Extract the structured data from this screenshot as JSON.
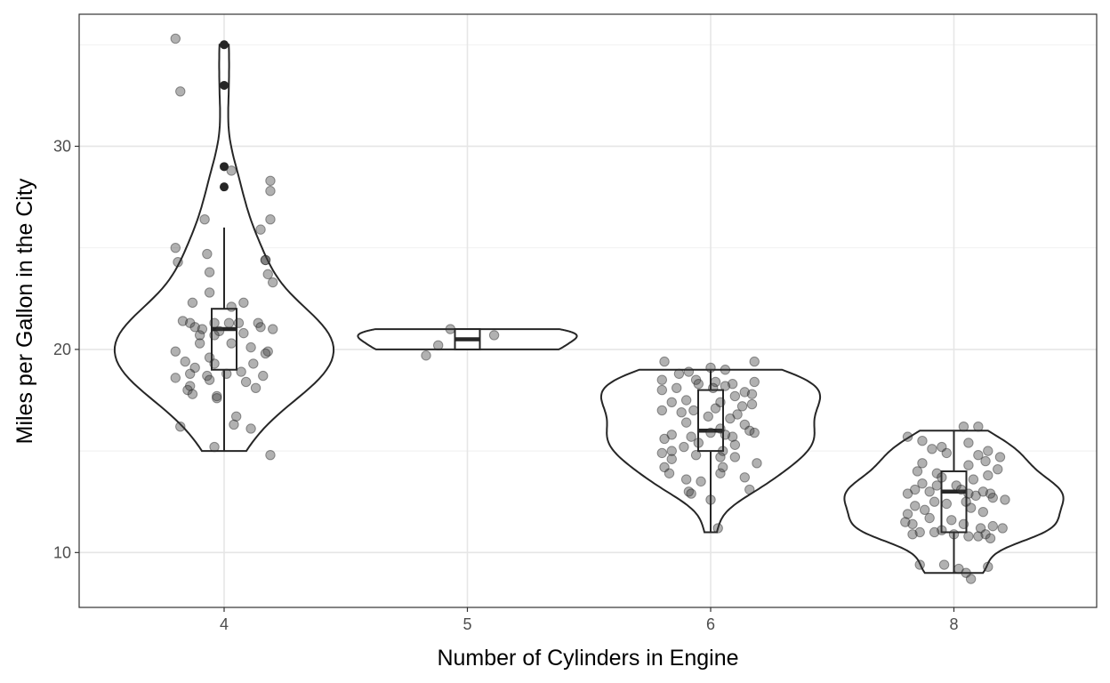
{
  "chart_data": {
    "type": "violin",
    "xlabel": "Number of Cylinders in Engine",
    "ylabel": "Miles per Gallon in the City",
    "x_ticks": [
      "4",
      "5",
      "6",
      "8"
    ],
    "y_ticks": [
      10,
      20,
      30
    ],
    "ylim": [
      7.3,
      36.5
    ],
    "grid": true,
    "groups": [
      {
        "category": "4",
        "box": {
          "min": 15,
          "q1": 19,
          "median": 21,
          "q3": 22,
          "max": 26
        },
        "outliers": [
          28,
          29,
          33,
          35
        ],
        "violin_range": [
          15,
          35
        ],
        "points": [
          {
            "dx": -0.2,
            "y": 35.3
          },
          {
            "dx": -0.18,
            "y": 32.7
          },
          {
            "dx": 0.03,
            "y": 28.8
          },
          {
            "dx": 0.19,
            "y": 28.3
          },
          {
            "dx": 0.19,
            "y": 27.8
          },
          {
            "dx": -0.08,
            "y": 26.4
          },
          {
            "dx": 0.19,
            "y": 26.4
          },
          {
            "dx": 0.15,
            "y": 25.9
          },
          {
            "dx": -0.2,
            "y": 25.0
          },
          {
            "dx": -0.07,
            "y": 24.7
          },
          {
            "dx": -0.19,
            "y": 24.3
          },
          {
            "dx": 0.17,
            "y": 24.4
          },
          {
            "dx": 0.17,
            "y": 24.4
          },
          {
            "dx": -0.06,
            "y": 23.8
          },
          {
            "dx": 0.18,
            "y": 23.7
          },
          {
            "dx": 0.2,
            "y": 23.3
          },
          {
            "dx": -0.06,
            "y": 22.8
          },
          {
            "dx": -0.13,
            "y": 22.3
          },
          {
            "dx": 0.08,
            "y": 22.3
          },
          {
            "dx": 0.03,
            "y": 22.1
          },
          {
            "dx": -0.17,
            "y": 21.4
          },
          {
            "dx": -0.14,
            "y": 21.3
          },
          {
            "dx": -0.04,
            "y": 21.3
          },
          {
            "dx": 0.02,
            "y": 21.3
          },
          {
            "dx": 0.06,
            "y": 21.3
          },
          {
            "dx": 0.14,
            "y": 21.3
          },
          {
            "dx": 0.15,
            "y": 21.1
          },
          {
            "dx": -0.12,
            "y": 21.1
          },
          {
            "dx": -0.09,
            "y": 21.0
          },
          {
            "dx": 0.2,
            "y": 21.0
          },
          {
            "dx": -0.02,
            "y": 20.9
          },
          {
            "dx": 0.08,
            "y": 20.8
          },
          {
            "dx": -0.04,
            "y": 20.7
          },
          {
            "dx": -0.1,
            "y": 20.7
          },
          {
            "dx": 0.03,
            "y": 20.3
          },
          {
            "dx": -0.1,
            "y": 20.3
          },
          {
            "dx": 0.11,
            "y": 20.1
          },
          {
            "dx": -0.2,
            "y": 19.9
          },
          {
            "dx": 0.18,
            "y": 19.9
          },
          {
            "dx": 0.17,
            "y": 19.8
          },
          {
            "dx": -0.06,
            "y": 19.6
          },
          {
            "dx": -0.16,
            "y": 19.4
          },
          {
            "dx": -0.04,
            "y": 19.3
          },
          {
            "dx": 0.12,
            "y": 19.3
          },
          {
            "dx": -0.12,
            "y": 19.1
          },
          {
            "dx": 0.07,
            "y": 18.9
          },
          {
            "dx": -0.14,
            "y": 18.8
          },
          {
            "dx": 0.01,
            "y": 18.8
          },
          {
            "dx": 0.16,
            "y": 18.7
          },
          {
            "dx": -0.2,
            "y": 18.6
          },
          {
            "dx": -0.07,
            "y": 18.7
          },
          {
            "dx": -0.06,
            "y": 18.5
          },
          {
            "dx": 0.09,
            "y": 18.4
          },
          {
            "dx": -0.14,
            "y": 18.2
          },
          {
            "dx": 0.13,
            "y": 18.1
          },
          {
            "dx": -0.15,
            "y": 18.0
          },
          {
            "dx": -0.13,
            "y": 17.8
          },
          {
            "dx": -0.03,
            "y": 17.7
          },
          {
            "dx": -0.03,
            "y": 17.6
          },
          {
            "dx": 0.05,
            "y": 16.7
          },
          {
            "dx": 0.04,
            "y": 16.3
          },
          {
            "dx": -0.18,
            "y": 16.2
          },
          {
            "dx": 0.11,
            "y": 16.1
          },
          {
            "dx": -0.04,
            "y": 15.2
          },
          {
            "dx": 0.19,
            "y": 14.8
          }
        ]
      },
      {
        "category": "5",
        "box": {
          "min": 20,
          "q1": 20,
          "median": 20.5,
          "q3": 21,
          "max": 21
        },
        "outliers": [],
        "violin_range": [
          20,
          21
        ],
        "points": [
          {
            "dx": -0.17,
            "y": 19.7
          },
          {
            "dx": -0.12,
            "y": 20.2
          },
          {
            "dx": -0.07,
            "y": 21.0
          },
          {
            "dx": 0.11,
            "y": 20.7
          }
        ]
      },
      {
        "category": "6",
        "box": {
          "min": 11,
          "q1": 15,
          "median": 16,
          "q3": 18,
          "max": 19
        },
        "outliers": [],
        "violin_range": [
          11,
          19
        ],
        "points": [
          {
            "dx": -0.19,
            "y": 19.4
          },
          {
            "dx": 0.18,
            "y": 19.4
          },
          {
            "dx": 0.0,
            "y": 19.1
          },
          {
            "dx": 0.06,
            "y": 19.0
          },
          {
            "dx": -0.09,
            "y": 18.9
          },
          {
            "dx": -0.13,
            "y": 18.8
          },
          {
            "dx": -0.2,
            "y": 18.5
          },
          {
            "dx": -0.06,
            "y": 18.5
          },
          {
            "dx": 0.02,
            "y": 18.4
          },
          {
            "dx": 0.18,
            "y": 18.4
          },
          {
            "dx": -0.05,
            "y": 18.3
          },
          {
            "dx": 0.09,
            "y": 18.3
          },
          {
            "dx": 0.06,
            "y": 18.2
          },
          {
            "dx": -0.14,
            "y": 18.1
          },
          {
            "dx": 0.01,
            "y": 18.1
          },
          {
            "dx": -0.2,
            "y": 18.0
          },
          {
            "dx": 0.14,
            "y": 17.9
          },
          {
            "dx": 0.17,
            "y": 17.8
          },
          {
            "dx": 0.1,
            "y": 17.7
          },
          {
            "dx": -0.1,
            "y": 17.5
          },
          {
            "dx": -0.16,
            "y": 17.4
          },
          {
            "dx": 0.04,
            "y": 17.4
          },
          {
            "dx": 0.17,
            "y": 17.3
          },
          {
            "dx": 0.13,
            "y": 17.2
          },
          {
            "dx": 0.02,
            "y": 17.1
          },
          {
            "dx": -0.2,
            "y": 17.0
          },
          {
            "dx": -0.07,
            "y": 17.0
          },
          {
            "dx": -0.12,
            "y": 16.9
          },
          {
            "dx": 0.11,
            "y": 16.8
          },
          {
            "dx": -0.01,
            "y": 16.7
          },
          {
            "dx": 0.08,
            "y": 16.6
          },
          {
            "dx": -0.1,
            "y": 16.4
          },
          {
            "dx": 0.14,
            "y": 16.3
          },
          {
            "dx": 0.04,
            "y": 16.1
          },
          {
            "dx": 0.16,
            "y": 16.0
          },
          {
            "dx": -0.16,
            "y": 15.8
          },
          {
            "dx": -0.08,
            "y": 15.7
          },
          {
            "dx": 0.09,
            "y": 15.7
          },
          {
            "dx": 0.18,
            "y": 15.9
          },
          {
            "dx": 0.0,
            "y": 15.9
          },
          {
            "dx": 0.06,
            "y": 15.8
          },
          {
            "dx": -0.19,
            "y": 15.6
          },
          {
            "dx": -0.05,
            "y": 15.4
          },
          {
            "dx": -0.11,
            "y": 15.2
          },
          {
            "dx": 0.1,
            "y": 15.3
          },
          {
            "dx": -0.16,
            "y": 15.0
          },
          {
            "dx": -0.2,
            "y": 14.9
          },
          {
            "dx": 0.05,
            "y": 15.0
          },
          {
            "dx": -0.06,
            "y": 14.8
          },
          {
            "dx": 0.04,
            "y": 14.7
          },
          {
            "dx": 0.1,
            "y": 14.7
          },
          {
            "dx": -0.16,
            "y": 14.6
          },
          {
            "dx": 0.19,
            "y": 14.4
          },
          {
            "dx": -0.19,
            "y": 14.2
          },
          {
            "dx": 0.05,
            "y": 14.2
          },
          {
            "dx": -0.17,
            "y": 13.9
          },
          {
            "dx": 0.04,
            "y": 13.9
          },
          {
            "dx": 0.14,
            "y": 13.7
          },
          {
            "dx": -0.1,
            "y": 13.6
          },
          {
            "dx": -0.04,
            "y": 13.5
          },
          {
            "dx": -0.09,
            "y": 13.0
          },
          {
            "dx": 0.16,
            "y": 13.1
          },
          {
            "dx": -0.08,
            "y": 12.9
          },
          {
            "dx": 0.0,
            "y": 12.6
          },
          {
            "dx": 0.03,
            "y": 11.2
          }
        ]
      },
      {
        "category": "8",
        "box": {
          "min": 9,
          "q1": 11,
          "median": 13,
          "q3": 14,
          "max": 16
        },
        "outliers": [],
        "violin_range": [
          9,
          16
        ],
        "points": [
          {
            "dx": 0.04,
            "y": 16.2
          },
          {
            "dx": 0.1,
            "y": 16.2
          },
          {
            "dx": -0.19,
            "y": 15.7
          },
          {
            "dx": -0.13,
            "y": 15.5
          },
          {
            "dx": 0.06,
            "y": 15.4
          },
          {
            "dx": -0.05,
            "y": 15.2
          },
          {
            "dx": -0.09,
            "y": 15.1
          },
          {
            "dx": 0.14,
            "y": 15.0
          },
          {
            "dx": -0.03,
            "y": 14.9
          },
          {
            "dx": 0.1,
            "y": 14.8
          },
          {
            "dx": 0.19,
            "y": 14.7
          },
          {
            "dx": 0.13,
            "y": 14.5
          },
          {
            "dx": -0.13,
            "y": 14.4
          },
          {
            "dx": 0.06,
            "y": 14.3
          },
          {
            "dx": 0.18,
            "y": 14.1
          },
          {
            "dx": -0.15,
            "y": 14.0
          },
          {
            "dx": -0.07,
            "y": 13.9
          },
          {
            "dx": 0.14,
            "y": 13.8
          },
          {
            "dx": -0.05,
            "y": 13.7
          },
          {
            "dx": 0.08,
            "y": 13.6
          },
          {
            "dx": -0.13,
            "y": 13.4
          },
          {
            "dx": -0.07,
            "y": 13.3
          },
          {
            "dx": 0.01,
            "y": 13.3
          },
          {
            "dx": -0.16,
            "y": 13.1
          },
          {
            "dx": 0.03,
            "y": 13.1
          },
          {
            "dx": -0.1,
            "y": 13.0
          },
          {
            "dx": 0.12,
            "y": 13.0
          },
          {
            "dx": -0.19,
            "y": 12.9
          },
          {
            "dx": 0.06,
            "y": 12.9
          },
          {
            "dx": 0.15,
            "y": 12.9
          },
          {
            "dx": 0.09,
            "y": 12.8
          },
          {
            "dx": 0.16,
            "y": 12.7
          },
          {
            "dx": 0.21,
            "y": 12.6
          },
          {
            "dx": -0.08,
            "y": 12.5
          },
          {
            "dx": 0.05,
            "y": 12.5
          },
          {
            "dx": -0.03,
            "y": 12.4
          },
          {
            "dx": -0.16,
            "y": 12.3
          },
          {
            "dx": 0.07,
            "y": 12.2
          },
          {
            "dx": -0.12,
            "y": 12.1
          },
          {
            "dx": 0.12,
            "y": 12.0
          },
          {
            "dx": -0.19,
            "y": 11.9
          },
          {
            "dx": -0.1,
            "y": 11.7
          },
          {
            "dx": -0.01,
            "y": 11.6
          },
          {
            "dx": -0.2,
            "y": 11.5
          },
          {
            "dx": -0.17,
            "y": 11.4
          },
          {
            "dx": 0.04,
            "y": 11.4
          },
          {
            "dx": 0.16,
            "y": 11.3
          },
          {
            "dx": 0.11,
            "y": 11.2
          },
          {
            "dx": 0.2,
            "y": 11.2
          },
          {
            "dx": -0.05,
            "y": 11.1
          },
          {
            "dx": -0.14,
            "y": 11.0
          },
          {
            "dx": -0.08,
            "y": 11.0
          },
          {
            "dx": 0.0,
            "y": 10.9
          },
          {
            "dx": 0.13,
            "y": 10.9
          },
          {
            "dx": -0.17,
            "y": 10.9
          },
          {
            "dx": 0.06,
            "y": 10.8
          },
          {
            "dx": 0.15,
            "y": 10.7
          },
          {
            "dx": 0.1,
            "y": 10.8
          },
          {
            "dx": -0.04,
            "y": 9.4
          },
          {
            "dx": -0.14,
            "y": 9.4
          },
          {
            "dx": 0.14,
            "y": 9.3
          },
          {
            "dx": 0.02,
            "y": 9.2
          },
          {
            "dx": 0.05,
            "y": 9.0
          },
          {
            "dx": 0.07,
            "y": 8.7
          }
        ]
      }
    ]
  }
}
